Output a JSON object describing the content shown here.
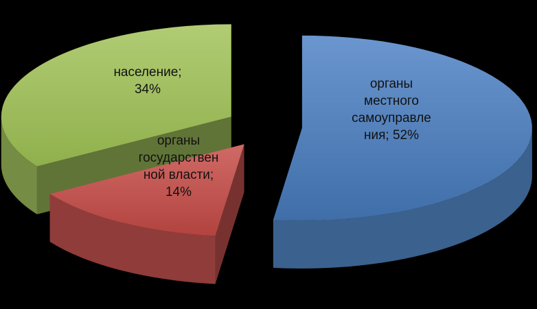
{
  "chart_data": {
    "type": "pie",
    "variant": "3d-exploded",
    "title": "",
    "background": "#000000",
    "slices": [
      {
        "label": "органы\nместного\nсамоуправле\nния; 52%",
        "value": 52,
        "color": "#4F81BD"
      },
      {
        "label": "органы\nгосударствен\nной власти;\n14%",
        "value": 14,
        "color": "#C0504D"
      },
      {
        "label": "население;\n34%",
        "value": 34,
        "color": "#9BBB59"
      }
    ]
  }
}
